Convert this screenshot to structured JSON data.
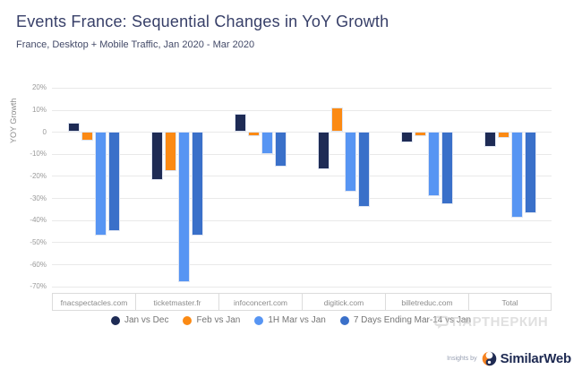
{
  "header": {
    "title": "Events France: Sequential Changes in YoY Growth",
    "subtitle": "France, Desktop + Mobile Traffic, Jan 2020 - Mar 2020"
  },
  "chart_data": {
    "type": "bar",
    "title": "Events France: Sequential Changes in YoY Growth",
    "xlabel": "",
    "ylabel": "YOY Growth",
    "ylim": [
      -73,
      24
    ],
    "grid": true,
    "legend_position": "bottom",
    "yticks": [
      {
        "value": 20,
        "label": "20%"
      },
      {
        "value": 10,
        "label": "10%"
      },
      {
        "value": 0,
        "label": "0"
      },
      {
        "value": -10,
        "label": "-10%"
      },
      {
        "value": -20,
        "label": "-20%"
      },
      {
        "value": -30,
        "label": "-30%"
      },
      {
        "value": -40,
        "label": "-40%"
      },
      {
        "value": -50,
        "label": "-50%"
      },
      {
        "value": -60,
        "label": "-60%"
      },
      {
        "value": -70,
        "label": "-70%"
      }
    ],
    "categories": [
      "fnacspectacles.com",
      "ticketmaster.fr",
      "infoconcert.com",
      "digitick.com",
      "billetreduc.com",
      "Total"
    ],
    "series": [
      {
        "name": "Jan vs Dec",
        "color": "#1e2b55",
        "values": [
          4,
          -22,
          8,
          -17,
          -5,
          -7
        ]
      },
      {
        "name": "Feb vs Jan",
        "color": "#fb8a14",
        "values": [
          -4,
          -18,
          -2,
          11,
          -2,
          -3
        ]
      },
      {
        "name": "1H Mar vs Jan",
        "color": "#5795f3",
        "values": [
          -47,
          -68,
          -10,
          -27,
          -29,
          -39
        ]
      },
      {
        "name": "7 Days Ending Mar-14 vs Jan",
        "color": "#3a70c9",
        "values": [
          -45,
          -47,
          -16,
          -34,
          -33,
          -37
        ]
      }
    ]
  },
  "watermark": {
    "text": "ПАРТНЕРКИН"
  },
  "footer": {
    "insights_by": "Insights by",
    "brand": "SimilarWeb"
  }
}
